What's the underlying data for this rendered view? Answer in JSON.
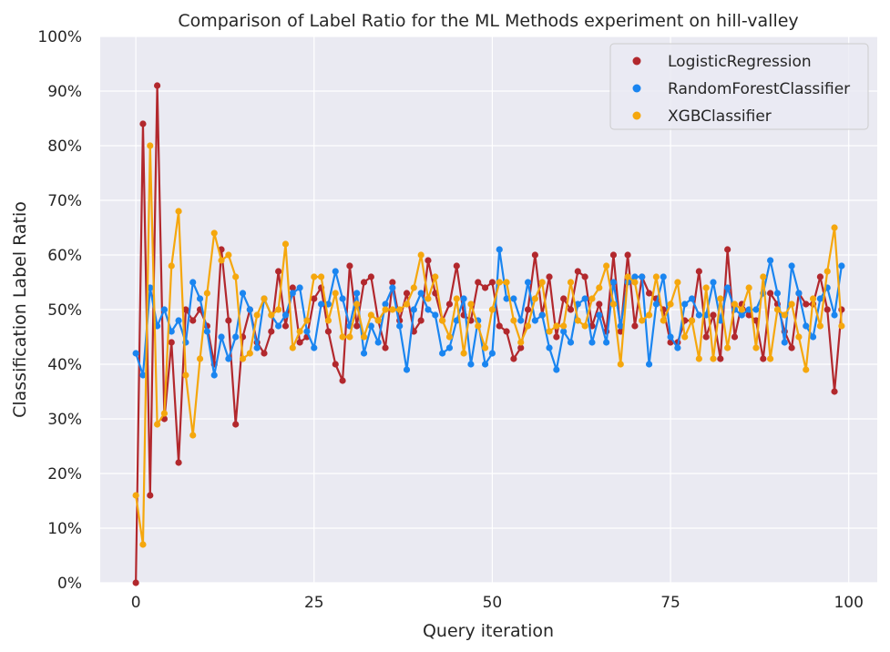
{
  "chart_data": {
    "type": "line",
    "title": "Comparison of Label Ratio for the ML Methods experiment on hill-valley",
    "xlabel": "Query iteration",
    "ylabel": "Classification Label Ratio",
    "xlim": [
      -5,
      104
    ],
    "ylim": [
      0,
      1
    ],
    "xticks": [
      0,
      25,
      50,
      75,
      100
    ],
    "xtick_labels": [
      "0",
      "25",
      "50",
      "75",
      "100"
    ],
    "yticks": [
      0,
      0.1,
      0.2,
      0.3,
      0.4,
      0.5,
      0.6,
      0.7,
      0.8,
      0.9,
      1.0
    ],
    "ytick_labels": [
      "0%",
      "10%",
      "20%",
      "30%",
      "40%",
      "50%",
      "60%",
      "70%",
      "80%",
      "90%",
      "100%"
    ],
    "grid": true,
    "legend_position": "top-right",
    "x": [
      0,
      1,
      2,
      3,
      4,
      5,
      6,
      7,
      8,
      9,
      10,
      11,
      12,
      13,
      14,
      15,
      16,
      17,
      18,
      19,
      20,
      21,
      22,
      23,
      24,
      25,
      26,
      27,
      28,
      29,
      30,
      31,
      32,
      33,
      34,
      35,
      36,
      37,
      38,
      39,
      40,
      41,
      42,
      43,
      44,
      45,
      46,
      47,
      48,
      49,
      50,
      51,
      52,
      53,
      54,
      55,
      56,
      57,
      58,
      59,
      60,
      61,
      62,
      63,
      64,
      65,
      66,
      67,
      68,
      69,
      70,
      71,
      72,
      73,
      74,
      75,
      76,
      77,
      78,
      79,
      80,
      81,
      82,
      83,
      84,
      85,
      86,
      87,
      88,
      89,
      90,
      91,
      92,
      93,
      94,
      95,
      96,
      97,
      98,
      99
    ],
    "series": [
      {
        "name": "LogisticRegression",
        "color": "#b2282d",
        "values": [
          0.0,
          0.84,
          0.16,
          0.91,
          0.3,
          0.44,
          0.22,
          0.5,
          0.48,
          0.5,
          0.47,
          0.4,
          0.61,
          0.48,
          0.29,
          0.45,
          0.5,
          0.44,
          0.42,
          0.46,
          0.57,
          0.47,
          0.54,
          0.44,
          0.45,
          0.52,
          0.54,
          0.46,
          0.4,
          0.37,
          0.58,
          0.47,
          0.55,
          0.56,
          0.48,
          0.43,
          0.55,
          0.48,
          0.53,
          0.46,
          0.48,
          0.59,
          0.53,
          0.48,
          0.51,
          0.58,
          0.49,
          0.48,
          0.55,
          0.54,
          0.55,
          0.47,
          0.46,
          0.41,
          0.43,
          0.5,
          0.6,
          0.49,
          0.56,
          0.45,
          0.52,
          0.5,
          0.57,
          0.56,
          0.47,
          0.51,
          0.46,
          0.6,
          0.46,
          0.6,
          0.47,
          0.56,
          0.53,
          0.52,
          0.5,
          0.44,
          0.44,
          0.48,
          0.48,
          0.57,
          0.45,
          0.49,
          0.41,
          0.61,
          0.45,
          0.51,
          0.49,
          0.48,
          0.41,
          0.53,
          0.51,
          0.46,
          0.43,
          0.53,
          0.51,
          0.51,
          0.56,
          0.5,
          0.35,
          0.5
        ]
      },
      {
        "name": "RandomForestClassifier",
        "color": "#1a85f0",
        "values": [
          0.42,
          0.38,
          0.54,
          0.47,
          0.5,
          0.46,
          0.48,
          0.44,
          0.55,
          0.52,
          0.46,
          0.38,
          0.45,
          0.41,
          0.45,
          0.53,
          0.5,
          0.43,
          0.52,
          0.49,
          0.47,
          0.49,
          0.53,
          0.54,
          0.46,
          0.43,
          0.51,
          0.51,
          0.57,
          0.52,
          0.47,
          0.53,
          0.42,
          0.47,
          0.44,
          0.51,
          0.54,
          0.47,
          0.39,
          0.5,
          0.53,
          0.5,
          0.49,
          0.42,
          0.43,
          0.48,
          0.52,
          0.4,
          0.48,
          0.4,
          0.42,
          0.61,
          0.52,
          0.52,
          0.48,
          0.55,
          0.48,
          0.49,
          0.43,
          0.39,
          0.46,
          0.44,
          0.51,
          0.52,
          0.44,
          0.49,
          0.44,
          0.55,
          0.47,
          0.55,
          0.56,
          0.56,
          0.4,
          0.51,
          0.56,
          0.45,
          0.43,
          0.51,
          0.52,
          0.49,
          0.49,
          0.55,
          0.48,
          0.54,
          0.5,
          0.49,
          0.5,
          0.5,
          0.53,
          0.59,
          0.53,
          0.44,
          0.58,
          0.53,
          0.47,
          0.45,
          0.52,
          0.54,
          0.49,
          0.58
        ]
      },
      {
        "name": "XGBClassifier",
        "color": "#f5a70d",
        "values": [
          0.16,
          0.07,
          0.8,
          0.29,
          0.31,
          0.58,
          0.68,
          0.38,
          0.27,
          0.41,
          0.53,
          0.64,
          0.59,
          0.6,
          0.56,
          0.41,
          0.42,
          0.49,
          0.52,
          0.49,
          0.5,
          0.62,
          0.43,
          0.46,
          0.48,
          0.56,
          0.56,
          0.48,
          0.53,
          0.45,
          0.45,
          0.51,
          0.45,
          0.49,
          0.48,
          0.5,
          0.5,
          0.5,
          0.51,
          0.54,
          0.6,
          0.52,
          0.56,
          0.48,
          0.45,
          0.52,
          0.42,
          0.51,
          0.47,
          0.43,
          0.5,
          0.55,
          0.55,
          0.48,
          0.44,
          0.47,
          0.52,
          0.55,
          0.46,
          0.47,
          0.47,
          0.55,
          0.48,
          0.47,
          0.52,
          0.54,
          0.58,
          0.51,
          0.4,
          0.56,
          0.55,
          0.48,
          0.49,
          0.56,
          0.48,
          0.51,
          0.55,
          0.45,
          0.48,
          0.41,
          0.54,
          0.41,
          0.52,
          0.43,
          0.51,
          0.5,
          0.54,
          0.43,
          0.56,
          0.41,
          0.5,
          0.49,
          0.51,
          0.45,
          0.39,
          0.52,
          0.47,
          0.57,
          0.65,
          0.47
        ]
      }
    ]
  }
}
